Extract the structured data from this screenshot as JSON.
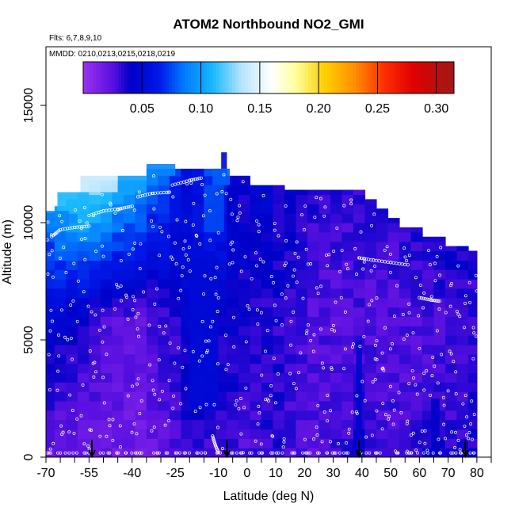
{
  "chart_data": {
    "type": "heatmap",
    "title": "ATOM2 Northbound NO2_GMI",
    "subtitle_flights": "Flts: 6,7,8,9,10",
    "subtitle_dates": "MMDD: 0210,0213,0215,0218,0219",
    "xlabel": "Latitude (deg N)",
    "ylabel": "Altitude (m)",
    "xlim": [
      -70,
      85
    ],
    "ylim": [
      0,
      17500
    ],
    "x_ticks": [
      -70,
      -55,
      -40,
      -25,
      -10,
      0,
      10,
      20,
      30,
      40,
      50,
      60,
      70,
      80
    ],
    "x_tick_labels": [
      "-70",
      "-55",
      "-40",
      "-25",
      "-10",
      "0",
      "10",
      "20",
      "30",
      "40",
      "50",
      "60",
      "70",
      "80"
    ],
    "x_minor_ticks": [
      -65,
      -60,
      -50,
      -45,
      -35,
      -30,
      -20,
      -15,
      -5,
      5,
      15,
      25,
      35,
      45,
      55,
      65,
      75,
      85
    ],
    "y_ticks": [
      0,
      5000,
      10000,
      15000
    ],
    "y_tick_labels": [
      "0",
      "5000",
      "10000",
      "15000"
    ],
    "colorbar": {
      "range": [
        0.0,
        0.315
      ],
      "ticks": [
        0.05,
        0.1,
        0.15,
        0.2,
        0.25,
        0.3
      ],
      "tick_labels": [
        "0.05",
        "0.10",
        "0.15",
        "0.20",
        "0.25",
        "0.30"
      ],
      "stops": [
        {
          "v": 0.0,
          "c": "#9a32f0"
        },
        {
          "v": 0.025,
          "c": "#5a10e0"
        },
        {
          "v": 0.04,
          "c": "#0000c8"
        },
        {
          "v": 0.065,
          "c": "#0018e8"
        },
        {
          "v": 0.085,
          "c": "#0078ff"
        },
        {
          "v": 0.11,
          "c": "#18b8ff"
        },
        {
          "v": 0.135,
          "c": "#b8e4ff"
        },
        {
          "v": 0.16,
          "c": "#ffffff"
        },
        {
          "v": 0.18,
          "c": "#ffffa0"
        },
        {
          "v": 0.205,
          "c": "#ffd000"
        },
        {
          "v": 0.23,
          "c": "#ff9000"
        },
        {
          "v": 0.255,
          "c": "#ff3000"
        },
        {
          "v": 0.28,
          "c": "#e00000"
        },
        {
          "v": 0.315,
          "c": "#a01818"
        }
      ]
    },
    "profile_columns": [
      {
        "lat0": -70,
        "lat1": -67,
        "top": 10400,
        "upper": 0.085,
        "mid": 0.045,
        "low": 0.022
      },
      {
        "lat0": -67,
        "lat1": -63,
        "top": 10700,
        "upper": 0.1,
        "mid": 0.04,
        "low": 0.02
      },
      {
        "lat0": -63,
        "lat1": -59,
        "top": 11000,
        "upper": 0.11,
        "mid": 0.038,
        "low": 0.02
      },
      {
        "lat0": -59,
        "lat1": -55,
        "top": 11300,
        "upper": 0.12,
        "mid": 0.035,
        "low": 0.018
      },
      {
        "lat0": -55,
        "lat1": -51,
        "top": 11800,
        "upper": 0.13,
        "mid": 0.03,
        "low": 0.02
      },
      {
        "lat0": -51,
        "lat1": -47,
        "top": 11800,
        "upper": 0.12,
        "mid": 0.028,
        "low": 0.02
      },
      {
        "lat0": -47,
        "lat1": -43,
        "top": 11800,
        "upper": 0.11,
        "mid": 0.026,
        "low": 0.018
      },
      {
        "lat0": -43,
        "lat1": -39,
        "top": 11800,
        "upper": 0.105,
        "mid": 0.025,
        "low": 0.018
      },
      {
        "lat0": -39,
        "lat1": -35,
        "top": 11800,
        "upper": 0.1,
        "mid": 0.024,
        "low": 0.018
      },
      {
        "lat0": -35,
        "lat1": -31,
        "top": 12300,
        "upper": 0.09,
        "mid": 0.028,
        "low": 0.02
      },
      {
        "lat0": -31,
        "lat1": -27,
        "top": 12300,
        "upper": 0.085,
        "mid": 0.032,
        "low": 0.022
      },
      {
        "lat0": -27,
        "lat1": -23,
        "top": 12300,
        "upper": 0.07,
        "mid": 0.035,
        "low": 0.025
      },
      {
        "lat0": -23,
        "lat1": -19,
        "top": 12300,
        "upper": 0.055,
        "mid": 0.045,
        "low": 0.03
      },
      {
        "lat0": -19,
        "lat1": -15,
        "top": 12300,
        "upper": 0.06,
        "mid": 0.048,
        "low": 0.032
      },
      {
        "lat0": -15,
        "lat1": -11,
        "top": 12300,
        "upper": 0.075,
        "mid": 0.045,
        "low": 0.03
      },
      {
        "lat0": -11,
        "lat1": -7,
        "top": 12300,
        "upper": 0.07,
        "mid": 0.04,
        "low": 0.028
      },
      {
        "lat0": -7,
        "lat1": -3,
        "top": 12000,
        "upper": 0.045,
        "mid": 0.04,
        "low": 0.028
      },
      {
        "lat0": -3,
        "lat1": 1,
        "top": 12000,
        "upper": 0.04,
        "mid": 0.038,
        "low": 0.026
      },
      {
        "lat0": 1,
        "lat1": 5,
        "top": 11600,
        "upper": 0.045,
        "mid": 0.035,
        "low": 0.03
      },
      {
        "lat0": 5,
        "lat1": 9,
        "top": 11600,
        "upper": 0.045,
        "mid": 0.034,
        "low": 0.032
      },
      {
        "lat0": 9,
        "lat1": 13,
        "top": 11600,
        "upper": 0.04,
        "mid": 0.033,
        "low": 0.035
      },
      {
        "lat0": 13,
        "lat1": 17,
        "top": 11400,
        "upper": 0.04,
        "mid": 0.03,
        "low": 0.03
      },
      {
        "lat0": 17,
        "lat1": 21,
        "top": 11400,
        "upper": 0.035,
        "mid": 0.028,
        "low": 0.028
      },
      {
        "lat0": 21,
        "lat1": 25,
        "top": 11400,
        "upper": 0.034,
        "mid": 0.026,
        "low": 0.026
      },
      {
        "lat0": 25,
        "lat1": 29,
        "top": 11400,
        "upper": 0.034,
        "mid": 0.026,
        "low": 0.028
      },
      {
        "lat0": 29,
        "lat1": 33,
        "top": 11400,
        "upper": 0.033,
        "mid": 0.025,
        "low": 0.03
      },
      {
        "lat0": 33,
        "lat1": 37,
        "top": 11400,
        "upper": 0.032,
        "mid": 0.025,
        "low": 0.032
      },
      {
        "lat0": 37,
        "lat1": 41,
        "top": 11400,
        "upper": 0.033,
        "mid": 0.028,
        "low": 0.038
      },
      {
        "lat0": 41,
        "lat1": 45,
        "top": 11000,
        "upper": 0.032,
        "mid": 0.026,
        "low": 0.032
      },
      {
        "lat0": 45,
        "lat1": 49,
        "top": 10600,
        "upper": 0.032,
        "mid": 0.025,
        "low": 0.03
      },
      {
        "lat0": 49,
        "lat1": 53,
        "top": 10200,
        "upper": 0.032,
        "mid": 0.025,
        "low": 0.03
      },
      {
        "lat0": 53,
        "lat1": 57,
        "top": 9800,
        "upper": 0.033,
        "mid": 0.026,
        "low": 0.03
      },
      {
        "lat0": 57,
        "lat1": 61,
        "top": 9800,
        "upper": 0.033,
        "mid": 0.026,
        "low": 0.032
      },
      {
        "lat0": 61,
        "lat1": 65,
        "top": 9400,
        "upper": 0.035,
        "mid": 0.028,
        "low": 0.036
      },
      {
        "lat0": 65,
        "lat1": 69,
        "top": 9400,
        "upper": 0.036,
        "mid": 0.028,
        "low": 0.038
      },
      {
        "lat0": 69,
        "lat1": 73,
        "top": 9000,
        "upper": 0.036,
        "mid": 0.028,
        "low": 0.035
      },
      {
        "lat0": 73,
        "lat1": 77,
        "top": 9000,
        "upper": 0.036,
        "mid": 0.03,
        "low": 0.034
      },
      {
        "lat0": 77,
        "lat1": 80,
        "top": 8800,
        "upper": 0.035,
        "mid": 0.03,
        "low": 0.036
      }
    ],
    "enhanced_features": [
      {
        "lat0": -70,
        "lat1": -62,
        "alt0": 9800,
        "alt1": 10500,
        "value": 0.09
      },
      {
        "lat0": -66,
        "lat1": -55,
        "alt0": 10500,
        "alt1": 11300,
        "value": 0.11
      },
      {
        "lat0": -58,
        "lat1": -45,
        "alt0": 11300,
        "alt1": 12000,
        "value": 0.14
      },
      {
        "lat0": -45,
        "lat1": -35,
        "alt0": 11300,
        "alt1": 12000,
        "value": 0.1
      },
      {
        "lat0": -35,
        "lat1": -25,
        "alt0": 12000,
        "alt1": 12500,
        "value": 0.09
      },
      {
        "lat0": -15,
        "lat1": -8,
        "alt0": 9600,
        "alt1": 11600,
        "value": 0.075
      },
      {
        "lat0": -12,
        "lat1": -6,
        "alt0": 11600,
        "alt1": 12300,
        "value": 0.08
      },
      {
        "lat0": -20,
        "lat1": -10,
        "alt0": 2000,
        "alt1": 8500,
        "value": 0.05
      },
      {
        "lat0": -9,
        "lat1": -7,
        "alt0": 12300,
        "alt1": 13000,
        "value": 0.045
      },
      {
        "lat0": 38,
        "lat1": 40,
        "alt0": 0,
        "alt1": 5000,
        "value": 0.045
      },
      {
        "lat0": 64,
        "lat1": 67,
        "alt0": 0,
        "alt1": 2500,
        "value": 0.04
      }
    ],
    "flight_tracks": [
      {
        "name": "profile-1",
        "points": [
          [
            -68,
            9400
          ],
          [
            -65,
            9700
          ],
          [
            -60,
            9800
          ],
          [
            -55,
            9850
          ]
        ]
      },
      {
        "name": "profile-2",
        "points": [
          [
            -55,
            10300
          ],
          [
            -50,
            10500
          ],
          [
            -44,
            10600
          ],
          [
            -40,
            10700
          ]
        ]
      },
      {
        "name": "profile-3",
        "points": [
          [
            -38,
            11100
          ],
          [
            -33,
            11250
          ],
          [
            -27,
            11300
          ]
        ]
      },
      {
        "name": "profile-4",
        "points": [
          [
            -26,
            11600
          ],
          [
            -20,
            11800
          ],
          [
            -16,
            11900
          ]
        ]
      },
      {
        "name": "profile-5",
        "points": [
          [
            39,
            8500
          ],
          [
            44,
            8400
          ],
          [
            50,
            8300
          ],
          [
            56,
            8200
          ]
        ]
      },
      {
        "name": "profile-6",
        "points": [
          [
            60,
            6800
          ],
          [
            64,
            6700
          ],
          [
            67,
            6650
          ]
        ]
      },
      {
        "name": "profile-7",
        "points": [
          [
            -12,
            900
          ],
          [
            -11,
            500
          ],
          [
            -10,
            200
          ]
        ]
      }
    ],
    "arrows": [
      {
        "lat": -54
      },
      {
        "lat": -7
      },
      {
        "lat": 39
      },
      {
        "lat": 76
      }
    ]
  }
}
